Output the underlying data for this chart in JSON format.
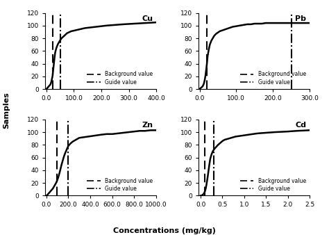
{
  "subplots": [
    {
      "label": "Cu",
      "xlim": [
        -5,
        400
      ],
      "xticks": [
        0.0,
        100.0,
        200.0,
        300.0,
        400.0
      ],
      "xticklabels": [
        "0.0",
        "100.0",
        "200.0",
        "300.0",
        "400.0"
      ],
      "background_value": 22,
      "guide_value": 50,
      "curve_x": [
        0,
        2,
        4,
        6,
        8,
        10,
        12,
        14,
        16,
        18,
        20,
        22,
        24,
        26,
        28,
        30,
        32,
        35,
        38,
        42,
        46,
        50,
        55,
        60,
        65,
        70,
        75,
        80,
        90,
        100,
        110,
        120,
        130,
        140,
        160,
        180,
        200,
        220,
        250,
        280,
        320,
        360,
        400
      ],
      "curve_y": [
        0,
        1,
        2,
        3,
        4,
        5,
        6,
        7,
        9,
        12,
        16,
        20,
        28,
        36,
        44,
        52,
        58,
        63,
        67,
        71,
        74,
        77,
        80,
        82,
        84,
        86,
        88,
        89,
        91,
        92,
        93,
        94,
        95,
        96,
        97,
        98,
        99,
        100,
        101,
        102,
        103,
        104,
        105
      ]
    },
    {
      "label": "Pb",
      "xlim": [
        -3,
        300
      ],
      "xticks": [
        0.0,
        100.0,
        200.0,
        300.0
      ],
      "xticklabels": [
        "0.0",
        "100.0",
        "200.0",
        "300.0"
      ],
      "background_value": 20,
      "guide_value": 250,
      "curve_x": [
        0,
        2,
        4,
        6,
        8,
        10,
        12,
        14,
        16,
        18,
        20,
        22,
        25,
        28,
        32,
        36,
        40,
        45,
        50,
        55,
        60,
        65,
        70,
        75,
        80,
        85,
        90,
        100,
        110,
        120,
        130,
        140,
        150,
        160,
        170,
        180,
        200,
        220,
        240,
        260,
        280,
        300
      ],
      "curve_y": [
        0,
        1,
        2,
        3,
        4,
        6,
        9,
        14,
        21,
        30,
        40,
        52,
        62,
        70,
        76,
        80,
        84,
        87,
        89,
        91,
        92,
        93,
        94,
        95,
        96,
        97,
        98,
        99,
        100,
        101,
        102,
        102,
        103,
        103,
        103,
        104,
        104,
        104,
        104,
        104,
        104,
        104
      ]
    },
    {
      "label": "Zn",
      "xlim": [
        -10,
        1000
      ],
      "xticks": [
        0.0,
        200.0,
        400.0,
        600.0,
        800.0,
        1000.0
      ],
      "xticklabels": [
        "0.0",
        "200.0",
        "400.0",
        "600.0",
        "800.0",
        "1000.0"
      ],
      "background_value": 100,
      "guide_value": 200,
      "curve_x": [
        0,
        5,
        10,
        15,
        20,
        25,
        30,
        40,
        50,
        60,
        70,
        80,
        90,
        100,
        110,
        120,
        130,
        140,
        150,
        160,
        170,
        180,
        190,
        200,
        220,
        240,
        260,
        280,
        300,
        340,
        380,
        420,
        460,
        500,
        550,
        600,
        650,
        700,
        750,
        800,
        850,
        900,
        950,
        1000
      ],
      "curve_y": [
        0,
        0,
        1,
        2,
        3,
        4,
        5,
        7,
        9,
        11,
        14,
        17,
        20,
        24,
        29,
        35,
        42,
        49,
        55,
        61,
        66,
        70,
        74,
        78,
        82,
        85,
        87,
        89,
        91,
        92,
        93,
        94,
        95,
        96,
        97,
        97,
        98,
        99,
        100,
        101,
        102,
        102,
        103,
        103
      ]
    },
    {
      "label": "Cd",
      "xlim": [
        -0.05,
        2.5
      ],
      "xticks": [
        0.0,
        0.5,
        1.0,
        1.5,
        2.0,
        2.5
      ],
      "xticklabels": [
        "0.0",
        "0.5",
        "1.0",
        "1.5",
        "2.0",
        "2.5"
      ],
      "background_value": 0.1,
      "guide_value": 0.3,
      "curve_x": [
        0,
        0.02,
        0.04,
        0.06,
        0.08,
        0.1,
        0.12,
        0.14,
        0.16,
        0.18,
        0.2,
        0.22,
        0.25,
        0.28,
        0.32,
        0.36,
        0.4,
        0.45,
        0.5,
        0.55,
        0.6,
        0.65,
        0.7,
        0.75,
        0.8,
        0.9,
        1.0,
        1.1,
        1.2,
        1.3,
        1.5,
        1.7,
        2.0,
        2.2,
        2.5
      ],
      "curve_y": [
        0,
        0,
        1,
        2,
        4,
        7,
        12,
        20,
        29,
        39,
        49,
        58,
        65,
        70,
        74,
        77,
        80,
        83,
        86,
        88,
        89,
        90,
        91,
        92,
        93,
        94,
        95,
        96,
        97,
        98,
        99,
        100,
        101,
        102,
        103
      ]
    }
  ],
  "ylim": [
    0,
    120
  ],
  "yticks": [
    0,
    20,
    40,
    60,
    80,
    100,
    120
  ],
  "ylabel": "Samples",
  "xlabel": "Concentrations (mg/kg)",
  "background_color": "#ffffff",
  "curve_color": "#000000",
  "bg_line_color": "#000000",
  "guide_line_color": "#000000",
  "curve_linewidth": 1.8,
  "vline_linewidth": 1.5,
  "tick_fontsize": 6.5,
  "label_fontsize": 8,
  "legend_fontsize": 5.5,
  "xlabel_fontsize": 8,
  "ylabel_fontsize": 8
}
